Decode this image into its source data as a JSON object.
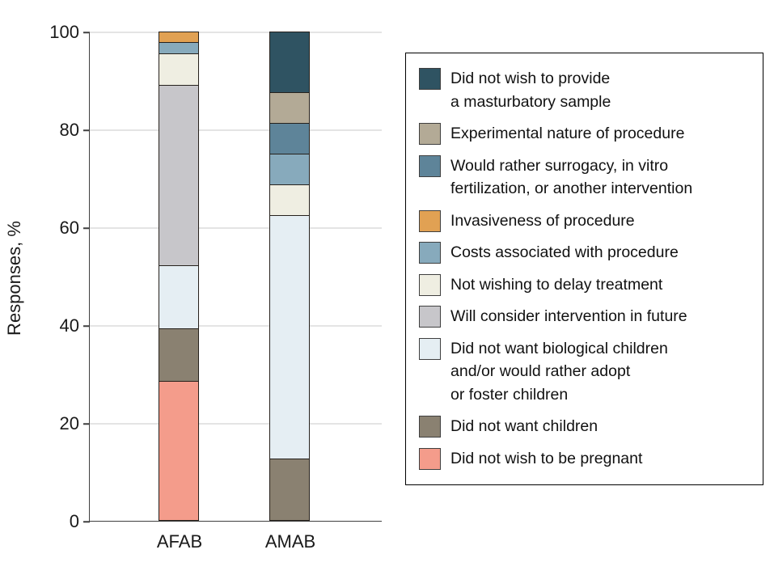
{
  "chart_data": {
    "type": "bar",
    "subtype": "stacked",
    "title": "",
    "xlabel": "",
    "ylabel": "Responses, %",
    "ylim": [
      0,
      100
    ],
    "yticks": [
      0,
      20,
      40,
      60,
      80,
      100
    ],
    "grid": true,
    "legend_position": "right",
    "categories": [
      "AFAB",
      "AMAB"
    ],
    "series": [
      {
        "name": "Did not wish to be pregnant",
        "color": "#F49C8B",
        "values": [
          28.3,
          0
        ]
      },
      {
        "name": "Did not want children",
        "color": "#8A8171",
        "values": [
          10.9,
          12.5
        ]
      },
      {
        "name": "Did not want biological children and/or would rather adopt or foster children",
        "color": "#E5EEF3",
        "values": [
          13.0,
          50.0
        ]
      },
      {
        "name": "Will consider intervention in future",
        "color": "#C7C6CA",
        "values": [
          37.0,
          0
        ]
      },
      {
        "name": "Not wishing to delay treatment",
        "color": "#EFEEE2",
        "values": [
          6.5,
          6.3
        ]
      },
      {
        "name": "Costs associated with procedure",
        "color": "#87AABC",
        "values": [
          2.2,
          6.3
        ]
      },
      {
        "name": "Invasiveness of procedure",
        "color": "#E1A153",
        "values": [
          2.2,
          0
        ]
      },
      {
        "name": "Would rather surrogacy, in vitro fertilization, or another intervention",
        "color": "#5E8499",
        "values": [
          0,
          6.3
        ]
      },
      {
        "name": "Experimental nature of procedure",
        "color": "#B3AA96",
        "values": [
          0,
          6.3
        ]
      },
      {
        "name": "Did not wish to provide a masturbatory sample",
        "color": "#2F5362",
        "values": [
          0,
          12.5
        ]
      }
    ]
  },
  "axis": {
    "ylabel": "Responses, %",
    "category_afab": "AFAB",
    "category_amab": "AMAB"
  },
  "legend": {
    "items": [
      {
        "color": "#2F5362",
        "lines": [
          "Did not wish to provide",
          "a masturbatory sample"
        ]
      },
      {
        "color": "#B3AA96",
        "lines": [
          "Experimental nature of procedure"
        ]
      },
      {
        "color": "#5E8499",
        "lines": [
          "Would rather surrogacy, in vitro",
          "fertilization, or another intervention"
        ]
      },
      {
        "color": "#E1A153",
        "lines": [
          "Invasiveness of procedure"
        ]
      },
      {
        "color": "#87AABC",
        "lines": [
          "Costs associated with procedure"
        ]
      },
      {
        "color": "#EFEEE2",
        "lines": [
          "Not wishing to delay treatment"
        ]
      },
      {
        "color": "#C7C6CA",
        "lines": [
          "Will consider intervention in future"
        ]
      },
      {
        "color": "#E5EEF3",
        "lines": [
          "Did not want biological children",
          "and/or would rather adopt",
          "or foster children"
        ]
      },
      {
        "color": "#8A8171",
        "lines": [
          "Did not want children"
        ]
      },
      {
        "color": "#F49C8B",
        "lines": [
          "Did not wish to be pregnant"
        ]
      }
    ]
  },
  "colors": {
    "axis": "#3f3f3f",
    "grid": "#e4e4e4",
    "segment_border": "#26211c",
    "legend_border": "#000000"
  }
}
